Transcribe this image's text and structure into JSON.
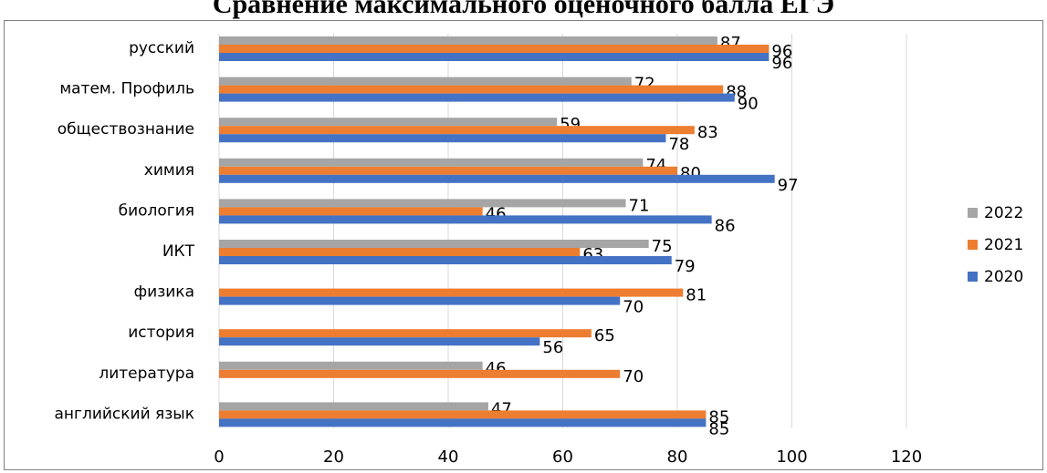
{
  "chart_data": {
    "type": "bar",
    "orientation": "horizontal",
    "title": "Сравнение максимального оценочного балла ЕГЭ",
    "categories": [
      "русский",
      "матем. Профиль",
      "обществознание",
      "химия",
      "биология",
      "ИКТ",
      "физика",
      "история",
      "литература",
      "английский язык"
    ],
    "series": [
      {
        "name": "2022",
        "color": "#a5a5a5",
        "values": [
          87,
          72,
          59,
          74,
          71,
          75,
          null,
          null,
          46,
          47
        ]
      },
      {
        "name": "2021",
        "color": "#ed7d31",
        "values": [
          96,
          88,
          83,
          80,
          46,
          63,
          81,
          65,
          70,
          85
        ]
      },
      {
        "name": "2020",
        "color": "#4472c4",
        "values": [
          96,
          90,
          78,
          97,
          86,
          79,
          70,
          56,
          null,
          85
        ]
      }
    ],
    "xlim": [
      0,
      120
    ],
    "xticks": [
      0,
      20,
      40,
      60,
      80,
      100,
      120
    ],
    "grid": "vertical",
    "legend": "right"
  }
}
